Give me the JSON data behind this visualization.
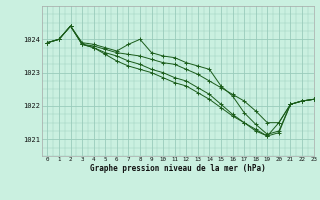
{
  "title": "Graphe pression niveau de la mer (hPa)",
  "bg_color": "#caf0e0",
  "grid_color": "#99ccbb",
  "line_color": "#1a5c1a",
  "marker_color": "#1a5c1a",
  "xlim": [
    -0.5,
    23
  ],
  "ylim": [
    1020.5,
    1025.0
  ],
  "yticks": [
    1021,
    1022,
    1023,
    1024
  ],
  "xtick_labels": [
    "0",
    "1",
    "2",
    "3",
    "4",
    "5",
    "6",
    "7",
    "8",
    "9",
    "10",
    "11",
    "12",
    "13",
    "14",
    "15",
    "16",
    "17",
    "18",
    "19",
    "20",
    "21",
    "22",
    "23"
  ],
  "series": [
    [
      1023.9,
      1024.0,
      1024.4,
      1023.9,
      1023.85,
      1023.75,
      1023.65,
      1023.85,
      1024.0,
      1023.6,
      1023.5,
      1023.45,
      1023.3,
      1023.2,
      1023.1,
      1022.6,
      1022.3,
      1021.8,
      1021.45,
      1021.15,
      1021.25,
      1022.05,
      1022.15,
      1022.2
    ],
    [
      1023.9,
      1024.0,
      1024.4,
      1023.85,
      1023.75,
      1023.6,
      1023.5,
      1023.35,
      1023.25,
      1023.1,
      1023.0,
      1022.85,
      1022.75,
      1022.55,
      1022.35,
      1022.05,
      1021.75,
      1021.5,
      1021.25,
      1021.1,
      1021.2,
      1022.05,
      1022.15,
      1022.2
    ],
    [
      1023.9,
      1024.0,
      1024.4,
      1023.85,
      1023.75,
      1023.55,
      1023.35,
      1023.2,
      1023.1,
      1023.0,
      1022.85,
      1022.7,
      1022.6,
      1022.4,
      1022.2,
      1021.95,
      1021.7,
      1021.5,
      1021.3,
      1021.1,
      1021.5,
      1022.05,
      1022.15,
      1022.2
    ],
    [
      1023.9,
      1024.0,
      1024.4,
      1023.85,
      1023.8,
      1023.7,
      1023.6,
      1023.55,
      1023.5,
      1023.4,
      1023.3,
      1023.25,
      1023.1,
      1022.95,
      1022.75,
      1022.55,
      1022.35,
      1022.15,
      1021.85,
      1021.5,
      1021.5,
      1022.05,
      1022.15,
      1022.2
    ]
  ]
}
